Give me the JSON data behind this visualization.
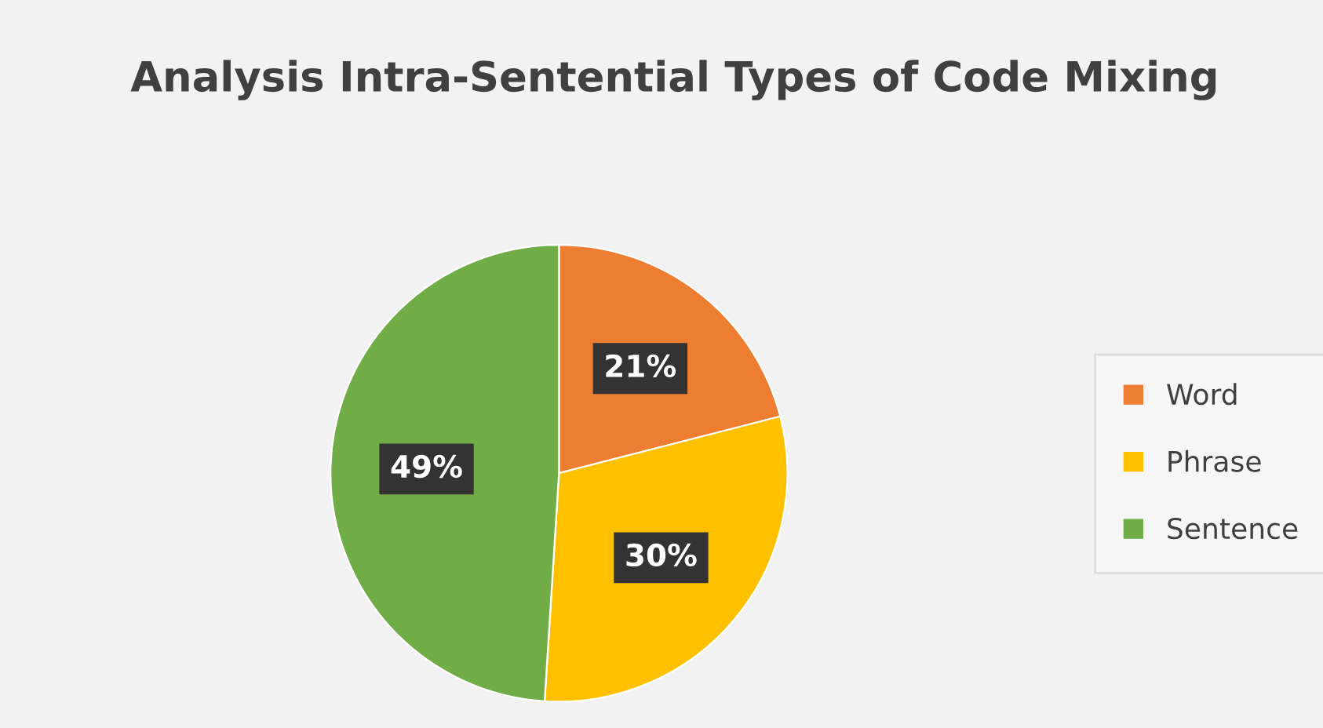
{
  "chart_data": {
    "type": "pie",
    "title": "Analysis Intra-Sentential Types of Code Mixing",
    "categories": [
      "Word",
      "Phrase",
      "Sentence"
    ],
    "values": [
      21,
      30,
      49
    ],
    "colors": [
      "#ed7d31",
      "#ffc000",
      "#70ad47"
    ],
    "value_labels": [
      "21%",
      "30%",
      "49%"
    ],
    "legend": "right"
  }
}
